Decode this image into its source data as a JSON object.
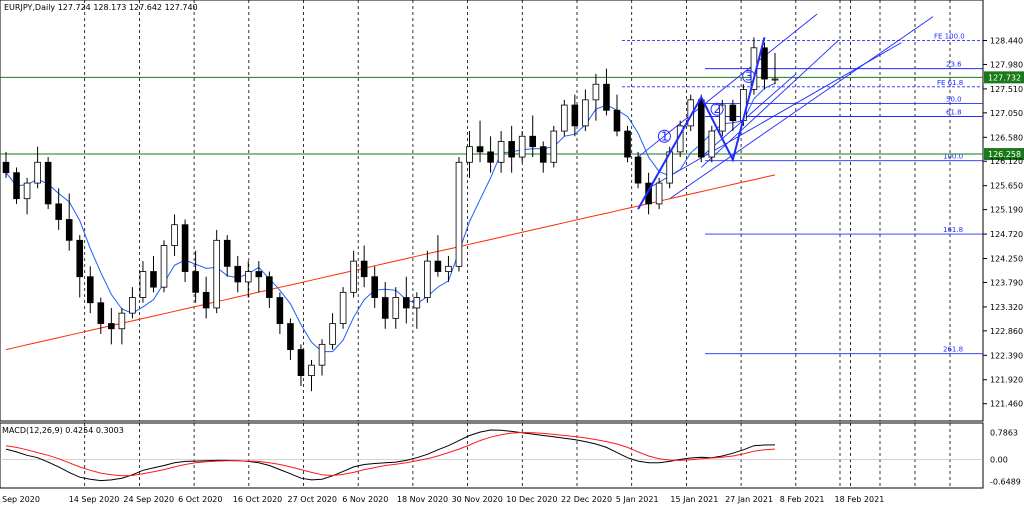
{
  "chart_data": {
    "type": "candlestick",
    "header": "EURJPY,Daily  127.724 128.173 127.642 127.740",
    "macd_label": "MACD(12,26,9) 0.4254 0.3003",
    "price_ticks": [
      "128.440",
      "127.980",
      "127.510",
      "127.050",
      "126.580",
      "126.120",
      "125.650",
      "125.190",
      "124.720",
      "124.250",
      "123.790",
      "123.320",
      "122.860",
      "122.390",
      "121.920",
      "121.460"
    ],
    "macd_ticks": [
      "0.7863",
      "0.00",
      "-0.6489"
    ],
    "ylim": [
      121.3,
      128.95
    ],
    "macd_ylim": [
      -0.72,
      0.86
    ],
    "date_labels": [
      "Sep 2020",
      "14 Sep 2020",
      "24 Sep 2020",
      "6 Oct 2020",
      "16 Oct 2020",
      "27 Oct 2020",
      "6 Nov 2020",
      "18 Nov 2020",
      "30 Nov 2020",
      "10 Dec 2020",
      "22 Dec 2020",
      "5 Jan 2021",
      "15 Jan 2021",
      "27 Jan 2021",
      "8 Feb 2021",
      "18 Feb 2021"
    ],
    "price_badges": [
      {
        "value": "127.732",
        "color": "#1a7a1a"
      },
      {
        "value": "126.258",
        "color": "#1a7a1a"
      }
    ],
    "fib_levels": [
      {
        "label": "FE 100.0",
        "price": 128.44
      },
      {
        "label": "23.6",
        "price": 127.9
      },
      {
        "label": "FE 61.8",
        "price": 127.55
      },
      {
        "label": "50.0",
        "price": 127.23
      },
      {
        "label": "61.8",
        "price": 126.98
      },
      {
        "label": "100.0",
        "price": 126.13
      },
      {
        "label": "161.8",
        "price": 124.72
      },
      {
        "label": "261.8",
        "price": 122.42
      }
    ],
    "wave_labels": [
      "1",
      "2",
      "3"
    ],
    "colors": {
      "ma_fast": "#1f5cff",
      "ma_slow": "#ff2a00",
      "macd": "#000000",
      "signal": "#ff1a1a",
      "fib": "#1f2cff",
      "hline": "#1a7a1a"
    },
    "candles": [
      [
        126.1,
        126.3,
        125.8,
        125.9
      ],
      [
        125.9,
        126.0,
        125.3,
        125.4
      ],
      [
        125.4,
        125.8,
        125.1,
        125.7
      ],
      [
        125.7,
        126.4,
        125.6,
        126.1
      ],
      [
        126.1,
        126.2,
        125.2,
        125.3
      ],
      [
        125.3,
        125.6,
        124.8,
        125.0
      ],
      [
        125.0,
        125.5,
        124.4,
        124.6
      ],
      [
        124.6,
        124.7,
        123.5,
        123.9
      ],
      [
        123.9,
        124.1,
        123.2,
        123.4
      ],
      [
        123.4,
        123.5,
        122.8,
        123.0
      ],
      [
        123.0,
        123.3,
        122.6,
        122.9
      ],
      [
        122.9,
        123.3,
        122.6,
        123.2
      ],
      [
        123.2,
        123.7,
        123.1,
        123.5
      ],
      [
        123.5,
        124.2,
        123.4,
        124.0
      ],
      [
        124.0,
        124.3,
        123.6,
        123.7
      ],
      [
        123.7,
        124.6,
        123.6,
        124.5
      ],
      [
        124.5,
        125.1,
        124.3,
        124.9
      ],
      [
        124.9,
        125.0,
        123.8,
        124.0
      ],
      [
        124.0,
        124.4,
        123.4,
        123.6
      ],
      [
        123.6,
        123.9,
        123.1,
        123.3
      ],
      [
        123.3,
        124.8,
        123.2,
        124.6
      ],
      [
        124.6,
        124.7,
        123.9,
        124.1
      ],
      [
        124.1,
        124.3,
        123.6,
        123.8
      ],
      [
        123.8,
        124.2,
        123.5,
        124.0
      ],
      [
        124.0,
        124.2,
        123.6,
        123.9
      ],
      [
        123.9,
        124.0,
        123.3,
        123.5
      ],
      [
        123.5,
        123.6,
        122.8,
        123.0
      ],
      [
        123.0,
        123.1,
        122.3,
        122.5
      ],
      [
        122.5,
        122.6,
        121.8,
        122.0
      ],
      [
        122.0,
        122.3,
        121.7,
        122.2
      ],
      [
        122.2,
        122.7,
        122.0,
        122.6
      ],
      [
        122.6,
        123.2,
        122.5,
        123.0
      ],
      [
        123.0,
        123.7,
        122.9,
        123.6
      ],
      [
        123.6,
        124.4,
        123.5,
        124.2
      ],
      [
        124.2,
        124.5,
        123.7,
        123.9
      ],
      [
        123.9,
        124.1,
        123.3,
        123.5
      ],
      [
        123.5,
        123.8,
        122.9,
        123.1
      ],
      [
        123.1,
        123.7,
        122.9,
        123.5
      ],
      [
        123.5,
        123.9,
        123.0,
        123.3
      ],
      [
        123.3,
        123.6,
        122.9,
        123.5
      ],
      [
        123.5,
        124.4,
        123.4,
        124.2
      ],
      [
        124.2,
        124.7,
        123.9,
        124.0
      ],
      [
        124.0,
        124.3,
        123.8,
        124.1
      ],
      [
        124.1,
        126.2,
        124.0,
        126.1
      ],
      [
        126.1,
        126.7,
        125.8,
        126.4
      ],
      [
        126.4,
        126.9,
        126.1,
        126.3
      ],
      [
        126.3,
        126.6,
        125.9,
        126.1
      ],
      [
        126.1,
        126.7,
        125.9,
        126.5
      ],
      [
        126.5,
        126.8,
        125.9,
        126.2
      ],
      [
        126.2,
        126.7,
        126.1,
        126.6
      ],
      [
        126.6,
        127.0,
        126.2,
        126.4
      ],
      [
        126.4,
        126.5,
        125.9,
        126.1
      ],
      [
        126.1,
        126.8,
        126.0,
        126.7
      ],
      [
        126.7,
        127.3,
        126.6,
        127.2
      ],
      [
        127.2,
        127.4,
        126.6,
        126.8
      ],
      [
        126.8,
        127.5,
        126.7,
        127.3
      ],
      [
        127.3,
        127.8,
        126.9,
        127.6
      ],
      [
        127.6,
        127.9,
        127.0,
        127.1
      ],
      [
        127.1,
        127.4,
        126.6,
        126.7
      ],
      [
        126.7,
        126.8,
        126.1,
        126.2
      ],
      [
        126.2,
        126.3,
        125.6,
        125.7
      ],
      [
        125.7,
        125.9,
        125.1,
        125.3
      ],
      [
        125.3,
        125.8,
        125.2,
        125.7
      ],
      [
        125.7,
        126.4,
        125.6,
        126.3
      ],
      [
        126.3,
        126.9,
        126.2,
        126.8
      ],
      [
        126.8,
        127.4,
        126.7,
        127.3
      ],
      [
        127.3,
        127.4,
        126.1,
        126.2
      ],
      [
        126.2,
        126.8,
        126.1,
        126.7
      ],
      [
        126.7,
        127.3,
        126.6,
        127.2
      ],
      [
        127.2,
        127.3,
        126.7,
        126.9
      ],
      [
        126.9,
        127.6,
        126.8,
        127.5
      ],
      [
        127.5,
        128.5,
        127.4,
        128.3
      ],
      [
        128.3,
        128.4,
        127.5,
        127.7
      ],
      [
        127.7,
        128.2,
        127.6,
        127.7
      ]
    ],
    "macd": [
      0.3,
      0.22,
      0.12,
      0.05,
      -0.08,
      -0.22,
      -0.38,
      -0.52,
      -0.58,
      -0.62,
      -0.6,
      -0.55,
      -0.45,
      -0.32,
      -0.25,
      -0.18,
      -0.1,
      -0.06,
      -0.05,
      -0.04,
      -0.03,
      -0.03,
      -0.04,
      -0.06,
      -0.1,
      -0.18,
      -0.3,
      -0.42,
      -0.55,
      -0.6,
      -0.58,
      -0.48,
      -0.35,
      -0.22,
      -0.15,
      -0.12,
      -0.1,
      -0.08,
      -0.03,
      0.05,
      0.15,
      0.28,
      0.4,
      0.55,
      0.7,
      0.8,
      0.86,
      0.85,
      0.82,
      0.78,
      0.74,
      0.7,
      0.66,
      0.62,
      0.58,
      0.52,
      0.45,
      0.35,
      0.2,
      0.05,
      -0.05,
      -0.1,
      -0.1,
      -0.06,
      0.0,
      0.04,
      0.06,
      0.05,
      0.1,
      0.18,
      0.28,
      0.4,
      0.42,
      0.4254
    ],
    "signal": [
      0.4,
      0.35,
      0.28,
      0.2,
      0.12,
      0.02,
      -0.1,
      -0.22,
      -0.32,
      -0.4,
      -0.45,
      -0.48,
      -0.47,
      -0.42,
      -0.36,
      -0.3,
      -0.22,
      -0.15,
      -0.1,
      -0.07,
      -0.05,
      -0.04,
      -0.04,
      -0.05,
      -0.06,
      -0.1,
      -0.15,
      -0.22,
      -0.3,
      -0.38,
      -0.45,
      -0.47,
      -0.44,
      -0.38,
      -0.3,
      -0.24,
      -0.18,
      -0.14,
      -0.1,
      -0.04,
      0.02,
      0.1,
      0.2,
      0.3,
      0.42,
      0.55,
      0.65,
      0.72,
      0.77,
      0.79,
      0.78,
      0.76,
      0.73,
      0.7,
      0.67,
      0.63,
      0.58,
      0.52,
      0.45,
      0.35,
      0.22,
      0.1,
      0.02,
      -0.02,
      -0.03,
      -0.01,
      0.02,
      0.04,
      0.06,
      0.1,
      0.16,
      0.24,
      0.28,
      0.3003
    ]
  }
}
